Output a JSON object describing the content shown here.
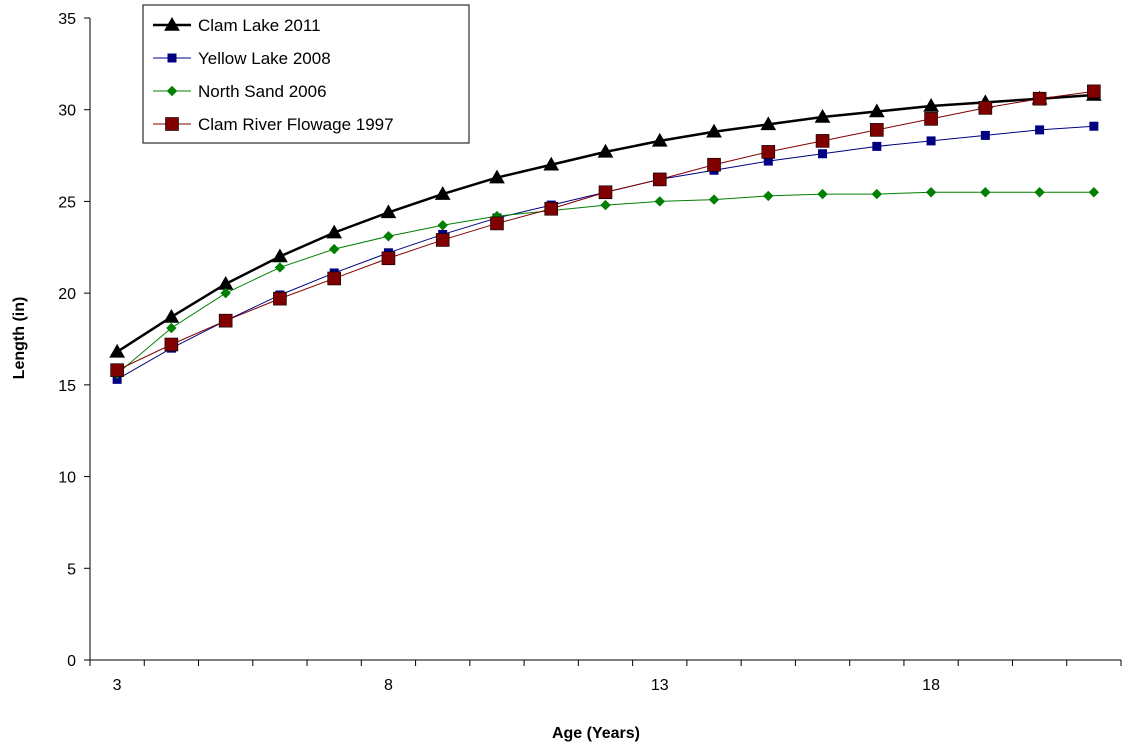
{
  "chart_data": {
    "type": "line",
    "title": "",
    "xlabel": "Age (Years)",
    "ylabel": "Length (in)",
    "xlim": [
      2.5,
      21.5
    ],
    "ylim": [
      0,
      35
    ],
    "x_ticks": [
      3,
      8,
      13,
      18
    ],
    "y_ticks": [
      0,
      5,
      10,
      15,
      20,
      25,
      30,
      35
    ],
    "grid": false,
    "legend_position": "top-left",
    "x": [
      3,
      4,
      5,
      6,
      7,
      8,
      9,
      10,
      11,
      12,
      13,
      14,
      15,
      16,
      17,
      18,
      19,
      20,
      21
    ],
    "series": [
      {
        "name": "Clam Lake 2011",
        "color": "#000000",
        "marker": "triangle",
        "values": [
          16.8,
          18.7,
          20.5,
          22.0,
          23.3,
          24.4,
          25.4,
          26.3,
          27.0,
          27.7,
          28.3,
          28.8,
          29.2,
          29.6,
          29.9,
          30.2,
          30.4,
          30.6,
          30.8
        ]
      },
      {
        "name": "Yellow Lake 2008",
        "color": "#000080",
        "marker": "square-small",
        "values": [
          15.3,
          17.0,
          18.5,
          19.9,
          21.1,
          22.2,
          23.2,
          24.1,
          24.8,
          25.5,
          26.2,
          26.7,
          27.2,
          27.6,
          28.0,
          28.3,
          28.6,
          28.9,
          29.1
        ]
      },
      {
        "name": "North Sand 2006",
        "color": "#008000",
        "marker": "diamond",
        "values": [
          15.6,
          18.1,
          20.0,
          21.4,
          22.4,
          23.1,
          23.7,
          24.2,
          24.5,
          24.8,
          25.0,
          25.1,
          25.3,
          25.4,
          25.4,
          25.5,
          25.5,
          25.5,
          25.5
        ]
      },
      {
        "name": "Clam River Flowage 1997",
        "color": "#800000",
        "marker": "square-large",
        "values": [
          15.8,
          17.2,
          18.5,
          19.7,
          20.8,
          21.9,
          22.9,
          23.8,
          24.6,
          25.5,
          26.2,
          27.0,
          27.7,
          28.3,
          28.9,
          29.5,
          30.1,
          30.6,
          31.0
        ]
      }
    ]
  }
}
